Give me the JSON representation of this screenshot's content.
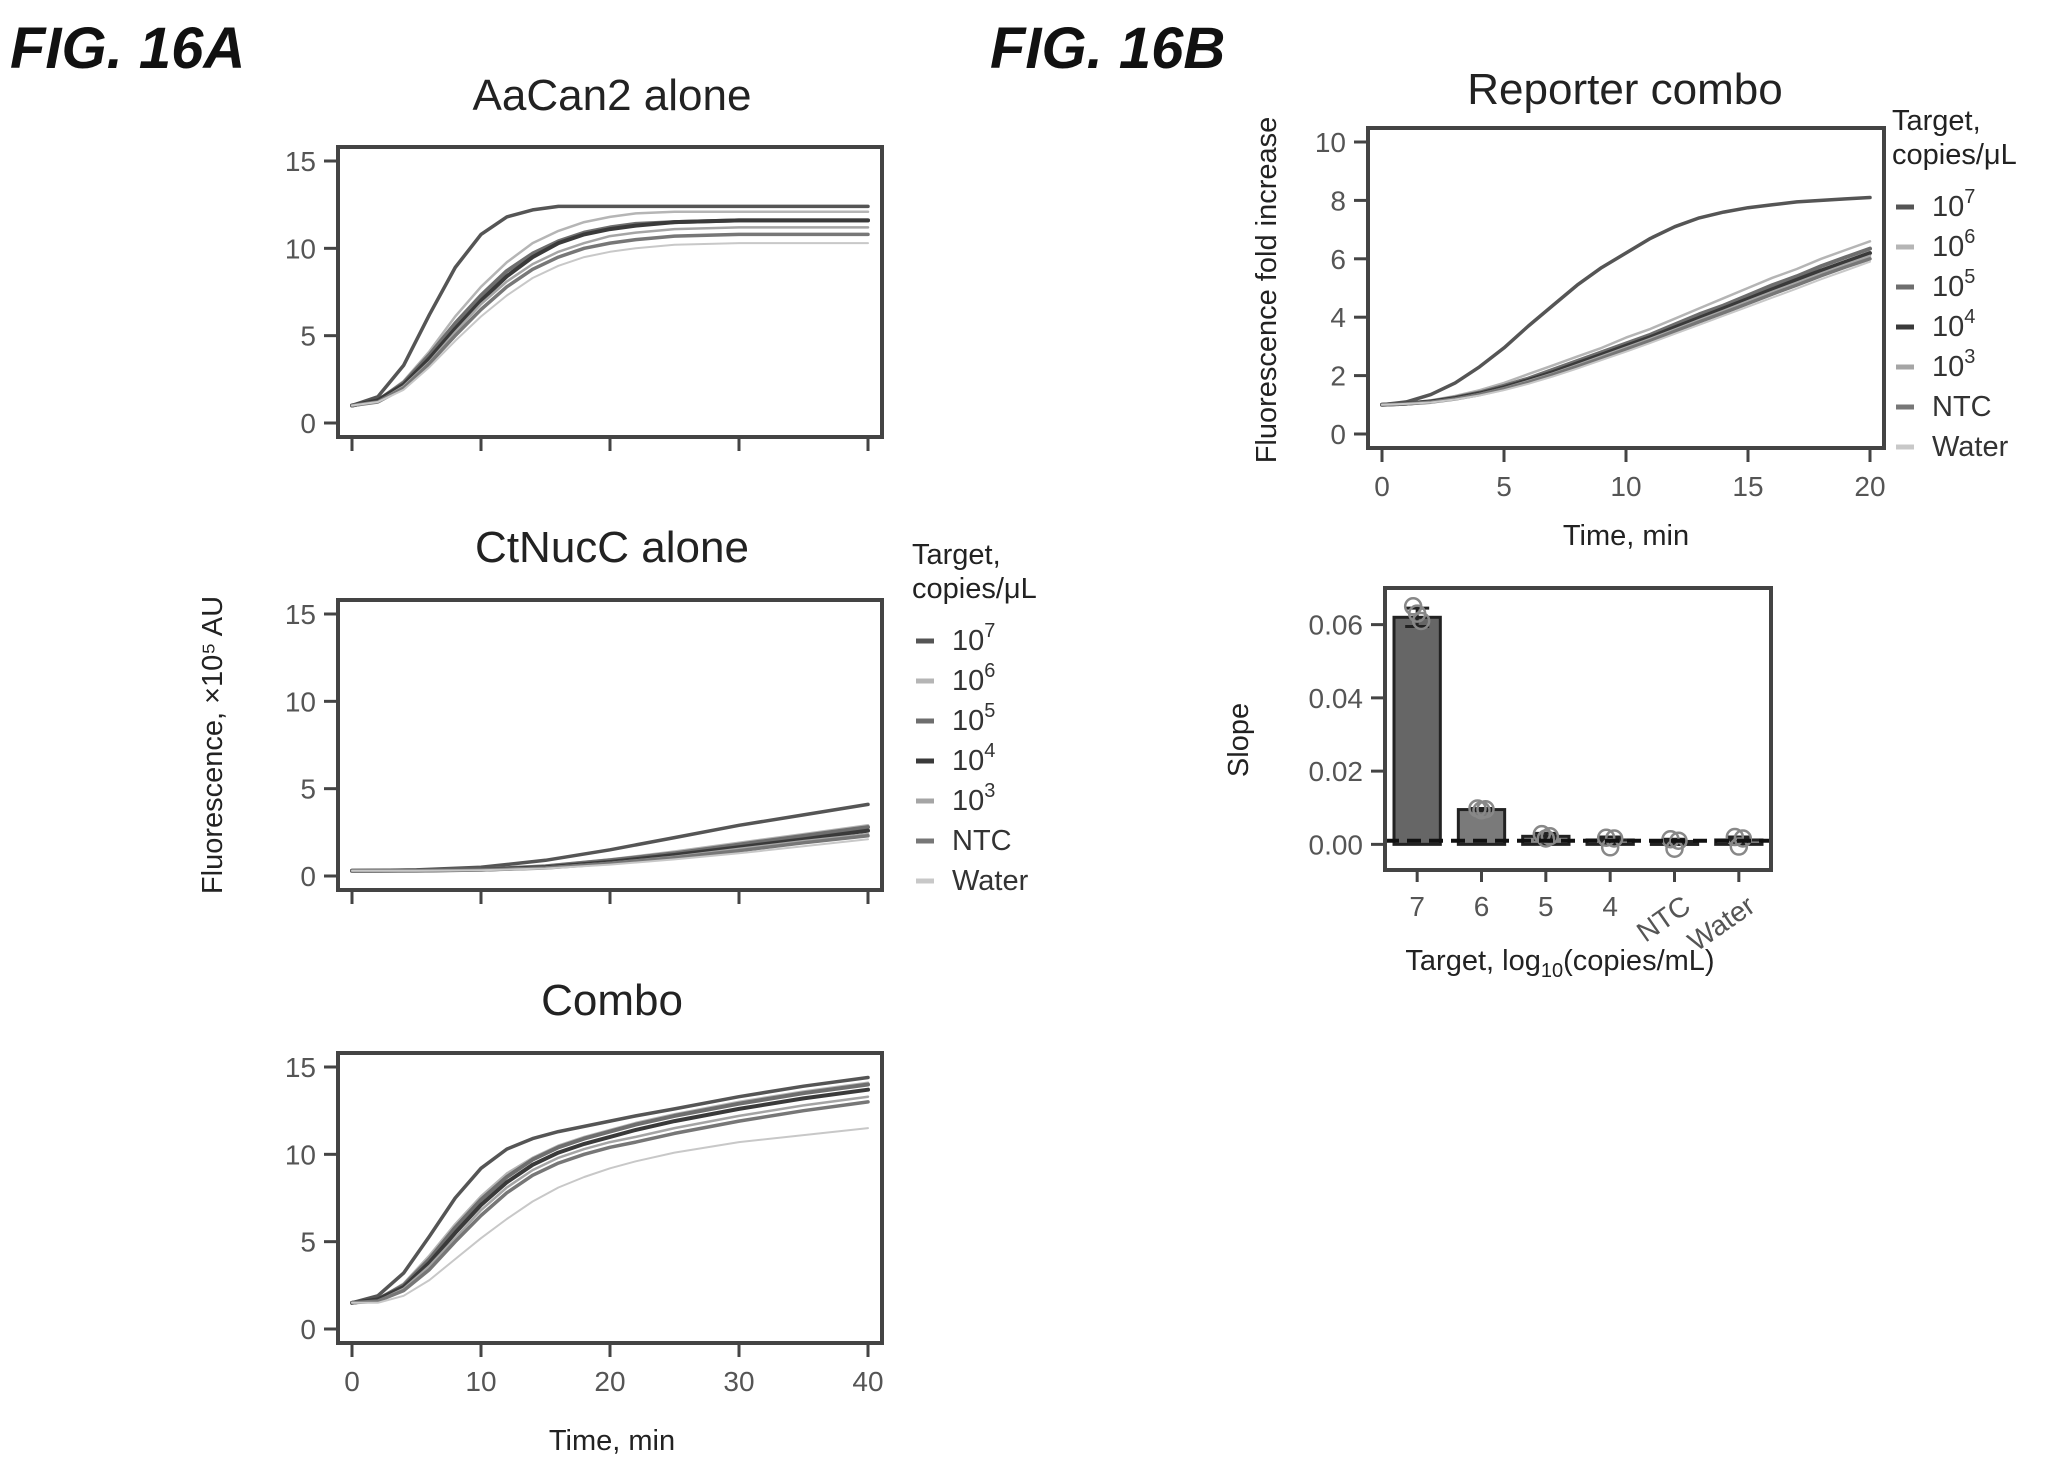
{
  "figure_labels": {
    "a": "FIG. 16A",
    "b": "FIG. 16B"
  },
  "shared_ylabel_16A": "Fluorescence, ×10⁵ AU",
  "legend": {
    "title_line1": "Target,",
    "title_line2": "copies/μL",
    "entries": [
      {
        "base": "10",
        "exp": "7",
        "color": "#555555"
      },
      {
        "base": "10",
        "exp": "6",
        "color": "#b5b5b5"
      },
      {
        "base": "10",
        "exp": "5",
        "color": "#6e6e6e"
      },
      {
        "base": "10",
        "exp": "4",
        "color": "#3a3a3a"
      },
      {
        "base": "10",
        "exp": "3",
        "color": "#a5a5a5"
      },
      {
        "base": "NTC",
        "exp": "",
        "color": "#777777"
      },
      {
        "base": "Water",
        "exp": "",
        "color": "#c8c8c8"
      }
    ]
  },
  "chart_data": [
    {
      "id": "aacan2",
      "type": "line",
      "title": "AaCan2 alone",
      "xlabel": "",
      "ylabel": "",
      "xlim": [
        0,
        40
      ],
      "ylim": [
        0,
        15
      ],
      "yticks": [
        "0",
        "5",
        "10",
        "15"
      ],
      "xtick_values": [
        0,
        10,
        20,
        30,
        40
      ],
      "xticks_labeled": false,
      "x": [
        0,
        2,
        4,
        6,
        8,
        10,
        12,
        14,
        16,
        18,
        20,
        22,
        25,
        30,
        35,
        40
      ],
      "series": [
        {
          "name": "10^7",
          "values": [
            1.0,
            1.5,
            3.3,
            6.2,
            8.9,
            10.8,
            11.8,
            12.2,
            12.4,
            12.4,
            12.4,
            12.4,
            12.4,
            12.4,
            12.4,
            12.4
          ]
        },
        {
          "name": "10^6",
          "values": [
            1.0,
            1.3,
            2.4,
            4.1,
            6.1,
            7.8,
            9.2,
            10.3,
            11.0,
            11.5,
            11.8,
            12.0,
            12.1,
            12.1,
            12.1,
            12.1
          ]
        },
        {
          "name": "10^5",
          "values": [
            1.0,
            1.3,
            2.3,
            3.9,
            5.7,
            7.3,
            8.7,
            9.7,
            10.4,
            10.9,
            11.2,
            11.4,
            11.5,
            11.6,
            11.6,
            11.6
          ]
        },
        {
          "name": "10^4",
          "values": [
            1.0,
            1.3,
            2.2,
            3.7,
            5.4,
            7.0,
            8.4,
            9.5,
            10.3,
            10.8,
            11.1,
            11.3,
            11.5,
            11.6,
            11.6,
            11.6
          ]
        },
        {
          "name": "10^3",
          "values": [
            1.0,
            1.2,
            2.1,
            3.5,
            5.2,
            6.8,
            8.1,
            9.1,
            9.8,
            10.3,
            10.7,
            10.9,
            11.1,
            11.2,
            11.2,
            11.2
          ]
        },
        {
          "name": "NTC",
          "values": [
            1.0,
            1.2,
            2.0,
            3.4,
            5.0,
            6.5,
            7.8,
            8.8,
            9.5,
            10.0,
            10.3,
            10.5,
            10.7,
            10.8,
            10.8,
            10.8
          ]
        },
        {
          "name": "Water",
          "values": [
            1.0,
            1.2,
            1.9,
            3.2,
            4.7,
            6.1,
            7.3,
            8.3,
            9.0,
            9.5,
            9.8,
            10.0,
            10.2,
            10.3,
            10.3,
            10.3
          ]
        }
      ]
    },
    {
      "id": "ctnucc",
      "type": "line",
      "title": "CtNucC alone",
      "xlabel": "",
      "ylabel": "",
      "xlim": [
        0,
        40
      ],
      "ylim": [
        0,
        15
      ],
      "yticks": [
        "0",
        "5",
        "10",
        "15"
      ],
      "xtick_values": [
        0,
        10,
        20,
        30,
        40
      ],
      "xticks_labeled": false,
      "x": [
        0,
        5,
        10,
        15,
        20,
        25,
        30,
        35,
        40
      ],
      "series": [
        {
          "name": "10^7",
          "values": [
            0.3,
            0.35,
            0.5,
            0.9,
            1.5,
            2.2,
            2.9,
            3.5,
            4.1
          ]
        },
        {
          "name": "10^6",
          "values": [
            0.3,
            0.32,
            0.4,
            0.6,
            0.95,
            1.4,
            1.9,
            2.4,
            2.9
          ]
        },
        {
          "name": "10^5",
          "values": [
            0.3,
            0.32,
            0.38,
            0.55,
            0.9,
            1.3,
            1.8,
            2.3,
            2.8
          ]
        },
        {
          "name": "10^4",
          "values": [
            0.3,
            0.31,
            0.36,
            0.5,
            0.8,
            1.2,
            1.65,
            2.1,
            2.6
          ]
        },
        {
          "name": "10^3",
          "values": [
            0.3,
            0.31,
            0.35,
            0.48,
            0.75,
            1.1,
            1.55,
            2.0,
            2.4
          ]
        },
        {
          "name": "NTC",
          "values": [
            0.3,
            0.31,
            0.35,
            0.46,
            0.72,
            1.05,
            1.45,
            1.9,
            2.3
          ]
        },
        {
          "name": "Water",
          "values": [
            0.3,
            0.3,
            0.33,
            0.43,
            0.65,
            0.95,
            1.3,
            1.7,
            2.1
          ]
        }
      ]
    },
    {
      "id": "combo",
      "type": "line",
      "title": "Combo",
      "xlabel": "Time, min",
      "ylabel": "",
      "xlim": [
        0,
        40
      ],
      "ylim": [
        0,
        15
      ],
      "yticks": [
        "0",
        "5",
        "10",
        "15"
      ],
      "xtick_values": [
        0,
        10,
        20,
        30,
        40
      ],
      "xticks": [
        "0",
        "10",
        "20",
        "30",
        "40"
      ],
      "xticks_labeled": true,
      "x": [
        0,
        2,
        4,
        6,
        8,
        10,
        12,
        14,
        16,
        18,
        20,
        22,
        25,
        30,
        35,
        40
      ],
      "series": [
        {
          "name": "10^7",
          "values": [
            1.5,
            1.9,
            3.2,
            5.3,
            7.5,
            9.2,
            10.3,
            10.9,
            11.3,
            11.6,
            11.9,
            12.2,
            12.6,
            13.3,
            13.9,
            14.4
          ]
        },
        {
          "name": "10^6",
          "values": [
            1.5,
            1.7,
            2.6,
            4.2,
            6.0,
            7.6,
            8.9,
            9.8,
            10.5,
            11.0,
            11.4,
            11.8,
            12.3,
            13.0,
            13.6,
            14.1
          ]
        },
        {
          "name": "10^5",
          "values": [
            1.5,
            1.7,
            2.5,
            4.0,
            5.8,
            7.4,
            8.7,
            9.7,
            10.4,
            10.9,
            11.3,
            11.7,
            12.2,
            12.9,
            13.5,
            14.0
          ]
        },
        {
          "name": "10^4",
          "values": [
            1.5,
            1.7,
            2.4,
            3.8,
            5.5,
            7.1,
            8.4,
            9.4,
            10.1,
            10.6,
            11.0,
            11.4,
            11.9,
            12.6,
            13.2,
            13.7
          ]
        },
        {
          "name": "10^3",
          "values": [
            1.5,
            1.6,
            2.3,
            3.6,
            5.2,
            6.8,
            8.1,
            9.1,
            9.8,
            10.3,
            10.7,
            11.0,
            11.5,
            12.2,
            12.8,
            13.3
          ]
        },
        {
          "name": "NTC",
          "values": [
            1.5,
            1.6,
            2.2,
            3.4,
            5.0,
            6.5,
            7.8,
            8.8,
            9.5,
            10.0,
            10.4,
            10.7,
            11.2,
            11.9,
            12.5,
            13.0
          ]
        },
        {
          "name": "Water",
          "values": [
            1.5,
            1.5,
            1.9,
            2.8,
            4.0,
            5.2,
            6.3,
            7.3,
            8.1,
            8.7,
            9.2,
            9.6,
            10.1,
            10.7,
            11.1,
            11.5
          ]
        }
      ]
    },
    {
      "id": "reporter",
      "type": "line",
      "title": "Reporter combo",
      "xlabel": "Time, min",
      "ylabel": "Fluorescence fold increase",
      "xlim": [
        0,
        20
      ],
      "ylim": [
        0,
        10
      ],
      "yticks": [
        "0",
        "2",
        "4",
        "6",
        "8",
        "10"
      ],
      "xtick_values": [
        0,
        5,
        10,
        15,
        20
      ],
      "xticks": [
        "0",
        "5",
        "10",
        "15",
        "20"
      ],
      "xticks_labeled": true,
      "x": [
        0,
        1,
        2,
        3,
        4,
        5,
        6,
        7,
        8,
        9,
        10,
        11,
        12,
        13,
        14,
        15,
        16,
        17,
        18,
        19,
        20
      ],
      "series": [
        {
          "name": "10^7",
          "values": [
            1.0,
            1.1,
            1.35,
            1.75,
            2.3,
            2.95,
            3.7,
            4.4,
            5.1,
            5.7,
            6.2,
            6.7,
            7.1,
            7.4,
            7.6,
            7.75,
            7.85,
            7.95,
            8.0,
            8.05,
            8.1
          ]
        },
        {
          "name": "10^6",
          "values": [
            1.0,
            1.05,
            1.15,
            1.3,
            1.5,
            1.75,
            2.05,
            2.35,
            2.65,
            2.95,
            3.3,
            3.6,
            3.95,
            4.3,
            4.65,
            5.0,
            5.35,
            5.65,
            6.0,
            6.3,
            6.6
          ]
        },
        {
          "name": "10^5",
          "values": [
            1.0,
            1.04,
            1.12,
            1.25,
            1.42,
            1.65,
            1.9,
            2.2,
            2.5,
            2.8,
            3.1,
            3.4,
            3.75,
            4.1,
            4.4,
            4.75,
            5.1,
            5.4,
            5.75,
            6.05,
            6.35
          ]
        },
        {
          "name": "10^4",
          "values": [
            1.0,
            1.04,
            1.11,
            1.23,
            1.39,
            1.6,
            1.85,
            2.12,
            2.42,
            2.72,
            3.02,
            3.32,
            3.65,
            3.98,
            4.3,
            4.63,
            4.96,
            5.28,
            5.6,
            5.9,
            6.2
          ]
        },
        {
          "name": "10^3",
          "values": [
            1.0,
            1.04,
            1.1,
            1.21,
            1.37,
            1.57,
            1.81,
            2.07,
            2.36,
            2.66,
            2.96,
            3.26,
            3.58,
            3.9,
            4.22,
            4.55,
            4.87,
            5.18,
            5.5,
            5.8,
            6.1
          ]
        },
        {
          "name": "NTC",
          "values": [
            1.0,
            1.03,
            1.09,
            1.2,
            1.35,
            1.54,
            1.77,
            2.03,
            2.31,
            2.6,
            2.9,
            3.2,
            3.52,
            3.84,
            4.15,
            4.47,
            4.79,
            5.1,
            5.42,
            5.72,
            6.0
          ]
        },
        {
          "name": "Water",
          "values": [
            1.0,
            1.03,
            1.08,
            1.18,
            1.32,
            1.5,
            1.72,
            1.97,
            2.24,
            2.53,
            2.82,
            3.12,
            3.43,
            3.74,
            4.05,
            4.36,
            4.67,
            4.98,
            5.3,
            5.6,
            5.9
          ]
        }
      ]
    },
    {
      "id": "slope",
      "type": "bar",
      "title": "",
      "xlabel_prefix": "Target, log",
      "xlabel_sub": "10",
      "xlabel_suffix": "(copies/mL)",
      "ylabel": "Slope",
      "ylim": [
        -0.007,
        0.07
      ],
      "yticks": [
        "0.00",
        "0.02",
        "0.04",
        "0.06"
      ],
      "ytick_values": [
        0.0,
        0.02,
        0.04,
        0.06
      ],
      "categories": [
        "7",
        "6",
        "5",
        "4",
        "NTC",
        "Water"
      ],
      "values": [
        0.062,
        0.0095,
        0.0022,
        0.0012,
        0.0008,
        0.0012
      ],
      "error": [
        0.0025,
        0.0003,
        0.0008,
        0.0008,
        0.0006,
        0.0008
      ],
      "points": [
        [
          0.065,
          0.063,
          0.061
        ],
        [
          0.0098,
          0.0093,
          0.0096
        ],
        [
          0.0028,
          0.0016,
          0.0022
        ],
        [
          0.0018,
          -0.0008,
          0.0016
        ],
        [
          0.0014,
          -0.0012,
          0.001
        ],
        [
          0.002,
          -0.0006,
          0.0016
        ]
      ],
      "baseline": 0.001,
      "bar_colors": [
        "#666666",
        "#7a7a7a",
        "#888888",
        "#888888",
        "#888888",
        "#888888"
      ]
    }
  ]
}
